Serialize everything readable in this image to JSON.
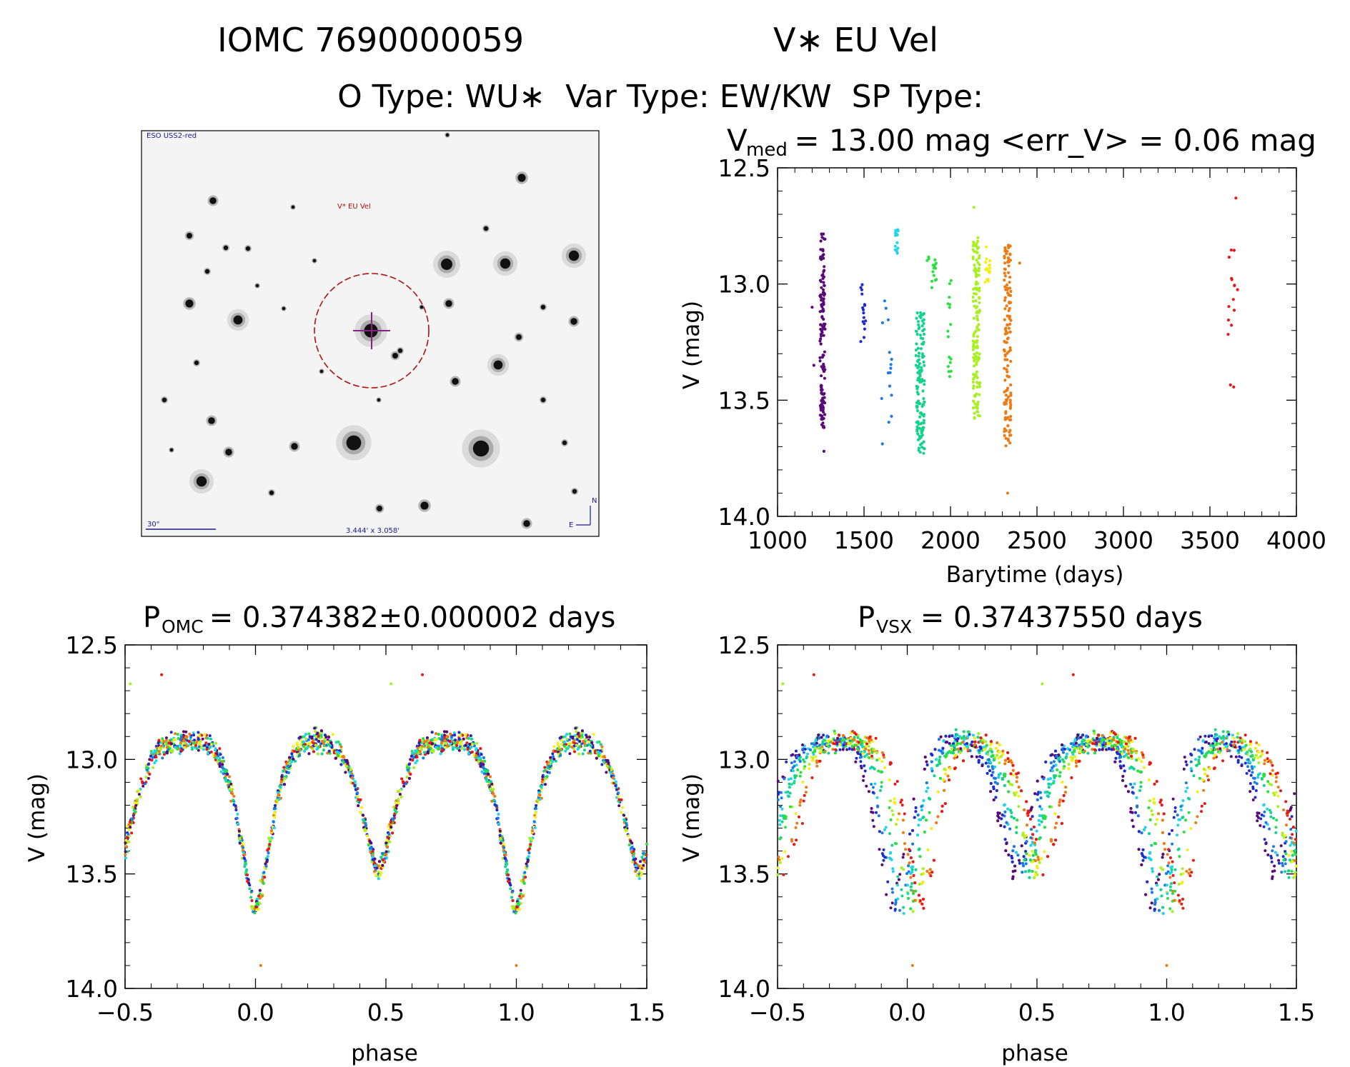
{
  "header": {
    "line1_left": "IOMC 7690000059",
    "line1_right": "V∗ EU Vel",
    "line2": "O Type: WU∗  Var Type: EW/KW  SP Type:"
  },
  "finder": {
    "survey_label": "ESO USS2-red",
    "target_label": "V* EU Vel",
    "scale_label": "30\"",
    "fov_label": "3.444' x 3.058'",
    "north_label": "N",
    "east_label": "E"
  },
  "colors": {
    "epochs": [
      "#5a0a78",
      "#1f2bd0",
      "#1a7ae8",
      "#22d4e8",
      "#12d48a",
      "#28e040",
      "#a8f022",
      "#f2f01a",
      "#f07a12",
      "#e81818"
    ],
    "circle": "#b01010"
  },
  "chart_data": [
    {
      "id": "lightcurve",
      "type": "scatter",
      "title_main": "V",
      "title_sub": "med",
      "title_rest": " = 13.00 mag <err_V> = 0.06 mag",
      "xlabel": "Barytime (days)",
      "ylabel": "V (mag)",
      "xlim": [
        1000,
        4000
      ],
      "ylim": [
        12.5,
        14.0
      ],
      "y_inverted": true,
      "x_ticks": [
        "1000",
        "1500",
        "2000",
        "2500",
        "3000",
        "3500",
        "4000"
      ],
      "y_ticks": [
        "12.5",
        "13.0",
        "13.5",
        "14.0"
      ],
      "median_mag": 13.0,
      "mean_err_mag": 0.06,
      "epochs": [
        {
          "name": "epoch-1",
          "t_start": 1245,
          "t_end": 1275,
          "min_mag": 12.78,
          "max_mag": 13.62,
          "outliers": [
            [
              1268,
              13.72
            ],
            [
              1200,
              13.1
            ],
            [
              1210,
              13.35
            ]
          ]
        },
        {
          "name": "epoch-2",
          "t_start": 1480,
          "t_end": 1510,
          "min_mag": 12.97,
          "max_mag": 13.25,
          "outliers": []
        },
        {
          "name": "epoch-3",
          "t_start": 1600,
          "t_end": 1660,
          "min_mag": 13.07,
          "max_mag": 13.7,
          "outliers": []
        },
        {
          "name": "epoch-4",
          "t_start": 1680,
          "t_end": 1700,
          "min_mag": 12.76,
          "max_mag": 12.87,
          "outliers": []
        },
        {
          "name": "epoch-5",
          "t_start": 1800,
          "t_end": 1850,
          "min_mag": 13.12,
          "max_mag": 13.73,
          "outliers": []
        },
        {
          "name": "epoch-6",
          "t_start": 1860,
          "t_end": 1920,
          "min_mag": 12.88,
          "max_mag": 13.02,
          "outliers": []
        },
        {
          "name": "epoch-7",
          "t_start": 1985,
          "t_end": 2005,
          "min_mag": 12.98,
          "max_mag": 13.45,
          "outliers": []
        },
        {
          "name": "epoch-8",
          "t_start": 2130,
          "t_end": 2170,
          "min_mag": 12.8,
          "max_mag": 13.6,
          "outliers": [
            [
              2135,
              12.67
            ]
          ]
        },
        {
          "name": "epoch-9",
          "t_start": 2200,
          "t_end": 2230,
          "min_mag": 12.84,
          "max_mag": 13.02,
          "outliers": []
        },
        {
          "name": "epoch-10",
          "t_start": 2310,
          "t_end": 2350,
          "min_mag": 12.83,
          "max_mag": 13.7,
          "outliers": [
            [
              2330,
              13.9
            ],
            [
              2400,
              12.91
            ]
          ]
        },
        {
          "name": "epoch-11",
          "t_start": 3600,
          "t_end": 3660,
          "min_mag": 12.78,
          "max_mag": 13.47,
          "outliers": [
            [
              3650,
              12.63
            ]
          ]
        }
      ]
    },
    {
      "id": "phase-omc",
      "type": "scatter",
      "title_main": "P",
      "title_sub": "OMC",
      "title_rest": " = 0.374382±0.000002 days",
      "xlabel": "phase",
      "ylabel": "V (mag)",
      "xlim": [
        -0.5,
        1.5
      ],
      "ylim": [
        12.5,
        14.0
      ],
      "y_inverted": true,
      "x_ticks": [
        "−0.5",
        "0.0",
        "0.5",
        "1.0",
        "1.5"
      ],
      "y_ticks": [
        "12.5",
        "13.0",
        "13.5",
        "14.0"
      ],
      "period_days": 0.374382,
      "period_err_days": 2e-06,
      "primary_min_mag": 13.65,
      "secondary_min_mag": 13.45,
      "max_mag": 12.9,
      "secondary_min_phase": 0.47
    },
    {
      "id": "phase-vsx",
      "type": "scatter",
      "title_main": "P",
      "title_sub": "VSX",
      "title_rest": " = 0.37437550 days",
      "xlabel": "phase",
      "ylabel": "V (mag)",
      "xlim": [
        -0.5,
        1.5
      ],
      "ylim": [
        12.5,
        14.0
      ],
      "y_inverted": true,
      "x_ticks": [
        "−0.5",
        "0.0",
        "0.5",
        "1.0",
        "1.5"
      ],
      "y_ticks": [
        "12.5",
        "13.0",
        "13.5",
        "14.0"
      ],
      "period_days": 0.3743755,
      "primary_min_mag": 13.65,
      "secondary_min_mag": 13.45,
      "max_mag": 12.9,
      "secondary_min_phase": 0.47,
      "phase_spread": 0.06
    }
  ]
}
